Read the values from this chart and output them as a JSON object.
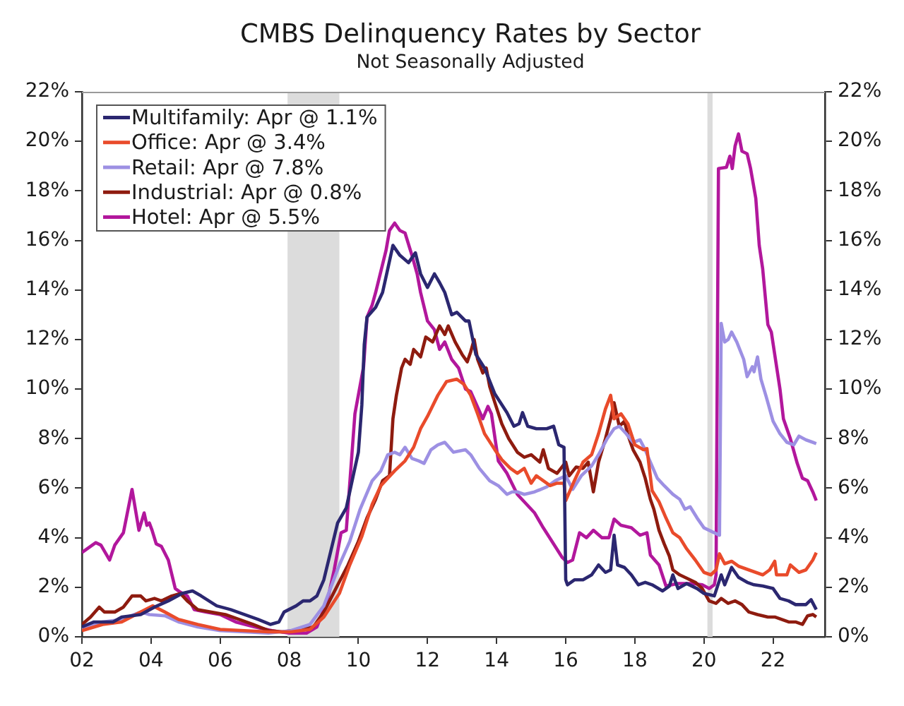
{
  "chart_data": {
    "type": "line",
    "title": "CMBS Delinquency Rates by Sector",
    "subtitle": "Not Seasonally Adjusted",
    "xlim": [
      2002,
      2023.5
    ],
    "xticks": [
      {
        "value": 2002,
        "label": "02"
      },
      {
        "value": 2004,
        "label": "04"
      },
      {
        "value": 2006,
        "label": "06"
      },
      {
        "value": 2008,
        "label": "08"
      },
      {
        "value": 2010,
        "label": "10"
      },
      {
        "value": 2012,
        "label": "12"
      },
      {
        "value": 2014,
        "label": "14"
      },
      {
        "value": 2016,
        "label": "16"
      },
      {
        "value": 2018,
        "label": "18"
      },
      {
        "value": 2020,
        "label": "20"
      },
      {
        "value": 2022,
        "label": "22"
      }
    ],
    "ylim": [
      0,
      22
    ],
    "yticks": [
      {
        "value": 0,
        "label": "0%"
      },
      {
        "value": 2,
        "label": "2%"
      },
      {
        "value": 4,
        "label": "4%"
      },
      {
        "value": 6,
        "label": "6%"
      },
      {
        "value": 8,
        "label": "8%"
      },
      {
        "value": 10,
        "label": "10%"
      },
      {
        "value": 12,
        "label": "12%"
      },
      {
        "value": 14,
        "label": "14%"
      },
      {
        "value": 16,
        "label": "16%"
      },
      {
        "value": 18,
        "label": "18%"
      },
      {
        "value": 20,
        "label": "20%"
      },
      {
        "value": 22,
        "label": "22%"
      }
    ],
    "y2lim": [
      0,
      22
    ],
    "y2ticks": [
      {
        "value": 0,
        "label": "0%"
      },
      {
        "value": 2,
        "label": "2%"
      },
      {
        "value": 4,
        "label": "4%"
      },
      {
        "value": 6,
        "label": "6%"
      },
      {
        "value": 8,
        "label": "8%"
      },
      {
        "value": 10,
        "label": "10%"
      },
      {
        "value": 12,
        "label": "12%"
      },
      {
        "value": 14,
        "label": "14%"
      },
      {
        "value": 16,
        "label": "16%"
      },
      {
        "value": 18,
        "label": "18%"
      },
      {
        "value": 20,
        "label": "20%"
      },
      {
        "value": 22,
        "label": "22%"
      }
    ],
    "legend": "top left",
    "bands": [
      {
        "axis": "x",
        "from": 2007.95,
        "to": 2009.45,
        "color": "#dcdcdc"
      },
      {
        "axis": "x",
        "from": 2020.1,
        "to": 2020.25,
        "color": "#dcdcdc"
      }
    ],
    "series": [
      {
        "name": "Multifamily: Apr @ 1.1%",
        "color": "#2b2770",
        "x": [
          2002.0,
          2002.35,
          2002.9,
          2003.15,
          2003.7,
          2004.1,
          2004.5,
          2004.9,
          2005.2,
          2005.45,
          2005.9,
          2006.3,
          2006.7,
          2007.1,
          2007.45,
          2007.7,
          2007.85,
          2008.2,
          2008.4,
          2008.6,
          2008.8,
          2009.0,
          2009.2,
          2009.4,
          2009.65,
          2009.85,
          2010.0,
          2010.1,
          2010.17,
          2010.25,
          2010.5,
          2010.7,
          2010.85,
          2011.0,
          2011.2,
          2011.45,
          2011.65,
          2011.8,
          2012.0,
          2012.2,
          2012.35,
          2012.5,
          2012.7,
          2012.85,
          2013.1,
          2013.2,
          2013.4,
          2013.65,
          2013.95,
          2014.3,
          2014.5,
          2014.65,
          2014.75,
          2014.9,
          2015.15,
          2015.45,
          2015.65,
          2015.8,
          2015.95,
          2016.0,
          2016.05,
          2016.25,
          2016.5,
          2016.75,
          2016.95,
          2017.15,
          2017.3,
          2017.4,
          2017.5,
          2017.7,
          2017.9,
          2018.1,
          2018.3,
          2018.5,
          2018.8,
          2019.0,
          2019.1,
          2019.25,
          2019.5,
          2019.8,
          2020.0,
          2020.3,
          2020.5,
          2020.6,
          2020.8,
          2021.0,
          2021.25,
          2021.45,
          2021.7,
          2022.0,
          2022.2,
          2022.45,
          2022.65,
          2022.95,
          2023.1,
          2023.25
        ],
        "values": [
          0.4,
          0.6,
          0.6,
          0.8,
          0.9,
          1.2,
          1.45,
          1.75,
          1.85,
          1.65,
          1.25,
          1.1,
          0.9,
          0.7,
          0.5,
          0.6,
          1.0,
          1.25,
          1.45,
          1.45,
          1.65,
          2.3,
          3.45,
          4.6,
          5.2,
          6.5,
          7.45,
          9.35,
          11.8,
          12.9,
          13.3,
          13.9,
          14.85,
          15.8,
          15.4,
          15.1,
          15.5,
          14.65,
          14.1,
          14.65,
          14.3,
          13.9,
          13.0,
          13.1,
          12.75,
          12.75,
          11.4,
          10.85,
          9.8,
          9.05,
          8.5,
          8.6,
          9.05,
          8.5,
          8.4,
          8.4,
          8.5,
          7.75,
          7.65,
          2.3,
          2.1,
          2.3,
          2.3,
          2.5,
          2.9,
          2.6,
          2.7,
          4.1,
          2.9,
          2.8,
          2.5,
          2.1,
          2.2,
          2.1,
          1.85,
          2.05,
          2.5,
          1.95,
          2.15,
          1.95,
          1.75,
          1.65,
          2.5,
          2.1,
          2.8,
          2.4,
          2.2,
          2.1,
          2.05,
          1.95,
          1.55,
          1.45,
          1.3,
          1.3,
          1.5,
          1.1
        ]
      },
      {
        "name": "Office: Apr @ 3.4%",
        "color": "#e94b2b",
        "x": [
          2002.0,
          2002.6,
          2003.15,
          2003.7,
          2004.05,
          2004.4,
          2004.8,
          2005.35,
          2006.0,
          2006.7,
          2007.4,
          2008.05,
          2008.6,
          2009.0,
          2009.45,
          2009.75,
          2010.1,
          2010.4,
          2010.65,
          2011.05,
          2011.35,
          2011.6,
          2011.8,
          2012.0,
          2012.3,
          2012.55,
          2012.85,
          2013.05,
          2013.25,
          2013.45,
          2013.65,
          2013.95,
          2014.15,
          2014.4,
          2014.6,
          2014.8,
          2015.0,
          2015.15,
          2015.35,
          2015.55,
          2015.75,
          2015.95,
          2016.0,
          2016.25,
          2016.5,
          2016.75,
          2016.95,
          2017.15,
          2017.3,
          2017.4,
          2017.6,
          2017.8,
          2018.0,
          2018.25,
          2018.35,
          2018.5,
          2018.7,
          2018.9,
          2019.1,
          2019.3,
          2019.5,
          2019.75,
          2020.0,
          2020.2,
          2020.35,
          2020.45,
          2020.6,
          2020.8,
          2021.0,
          2021.3,
          2021.5,
          2021.7,
          2021.9,
          2022.05,
          2022.1,
          2022.4,
          2022.5,
          2022.75,
          2022.95,
          2023.15,
          2023.25
        ],
        "values": [
          0.25,
          0.5,
          0.6,
          1.0,
          1.25,
          1.0,
          0.7,
          0.5,
          0.3,
          0.25,
          0.2,
          0.2,
          0.3,
          0.8,
          1.75,
          2.9,
          4.05,
          5.35,
          6.1,
          6.7,
          7.1,
          7.65,
          8.4,
          8.9,
          9.75,
          10.3,
          10.4,
          10.2,
          9.75,
          9.0,
          8.2,
          7.55,
          7.15,
          6.8,
          6.6,
          6.8,
          6.2,
          6.5,
          6.3,
          6.1,
          6.2,
          6.2,
          5.5,
          6.3,
          7.05,
          7.35,
          8.2,
          9.2,
          9.75,
          8.8,
          9.0,
          8.6,
          7.75,
          7.55,
          7.6,
          5.9,
          5.45,
          4.8,
          4.2,
          4.0,
          3.55,
          3.1,
          2.6,
          2.5,
          2.7,
          3.35,
          2.95,
          3.05,
          2.85,
          2.7,
          2.6,
          2.5,
          2.7,
          3.05,
          2.5,
          2.5,
          2.9,
          2.6,
          2.7,
          3.1,
          3.4
        ]
      },
      {
        "name": "Retail: Apr @ 7.8%",
        "color": "#9d90e3",
        "x": [
          2002.0,
          2002.6,
          2003.15,
          2003.7,
          2003.95,
          2004.4,
          2004.8,
          2005.35,
          2006.0,
          2006.7,
          2007.4,
          2008.05,
          2008.6,
          2009.0,
          2009.45,
          2009.75,
          2010.05,
          2010.4,
          2010.65,
          2010.85,
          2011.05,
          2011.2,
          2011.35,
          2011.55,
          2011.75,
          2011.9,
          2012.1,
          2012.3,
          2012.5,
          2012.75,
          2013.1,
          2013.25,
          2013.5,
          2013.8,
          2014.05,
          2014.3,
          2014.45,
          2014.6,
          2014.8,
          2015.1,
          2015.45,
          2015.7,
          2016.0,
          2016.2,
          2016.45,
          2016.75,
          2016.95,
          2017.2,
          2017.4,
          2017.55,
          2017.75,
          2017.95,
          2018.15,
          2018.3,
          2018.45,
          2018.65,
          2018.85,
          2019.1,
          2019.3,
          2019.45,
          2019.6,
          2019.8,
          2020.0,
          2020.15,
          2020.3,
          2020.45,
          2020.5,
          2020.6,
          2020.7,
          2020.8,
          2020.95,
          2021.15,
          2021.25,
          2021.4,
          2021.45,
          2021.55,
          2021.65,
          2021.8,
          2021.9,
          2022.0,
          2022.2,
          2022.4,
          2022.6,
          2022.75,
          2022.95,
          2023.15,
          2023.25
        ],
        "values": [
          0.3,
          0.6,
          0.7,
          1.0,
          0.9,
          0.85,
          0.6,
          0.4,
          0.25,
          0.2,
          0.15,
          0.25,
          0.5,
          1.25,
          2.9,
          3.85,
          5.15,
          6.3,
          6.7,
          7.35,
          7.45,
          7.35,
          7.65,
          7.2,
          7.1,
          7.0,
          7.55,
          7.75,
          7.85,
          7.45,
          7.55,
          7.35,
          6.8,
          6.3,
          6.1,
          5.75,
          5.85,
          5.85,
          5.75,
          5.85,
          6.05,
          6.3,
          6.5,
          5.95,
          6.5,
          6.9,
          7.35,
          8.0,
          8.4,
          8.5,
          8.2,
          7.85,
          7.95,
          7.55,
          7.05,
          6.4,
          6.1,
          5.75,
          5.55,
          5.15,
          5.25,
          4.8,
          4.4,
          4.3,
          4.2,
          4.1,
          12.65,
          11.9,
          12.0,
          12.3,
          11.9,
          11.2,
          10.5,
          10.9,
          10.7,
          11.3,
          10.4,
          9.7,
          9.2,
          8.7,
          8.2,
          7.85,
          7.75,
          8.1,
          7.95,
          7.85,
          7.8
        ]
      },
      {
        "name": "Industrial: Apr @ 0.8%",
        "color": "#8e1b0f",
        "x": [
          2002.0,
          2002.25,
          2002.5,
          2002.65,
          2002.95,
          2003.2,
          2003.45,
          2003.7,
          2003.85,
          2004.1,
          2004.3,
          2004.6,
          2004.85,
          2005.05,
          2005.35,
          2005.75,
          2006.15,
          2006.55,
          2006.95,
          2007.4,
          2007.8,
          2008.35,
          2008.7,
          2009.0,
          2009.35,
          2009.7,
          2010.0,
          2010.25,
          2010.5,
          2010.7,
          2010.9,
          2011.0,
          2011.1,
          2011.25,
          2011.35,
          2011.5,
          2011.6,
          2011.8,
          2011.95,
          2012.15,
          2012.35,
          2012.5,
          2012.6,
          2012.8,
          2013.0,
          2013.15,
          2013.25,
          2013.35,
          2013.45,
          2013.6,
          2013.7,
          2013.8,
          2013.95,
          2014.15,
          2014.35,
          2014.6,
          2014.8,
          2015.0,
          2015.25,
          2015.35,
          2015.5,
          2015.75,
          2016.0,
          2016.1,
          2016.3,
          2016.5,
          2016.65,
          2016.8,
          2016.95,
          2017.15,
          2017.3,
          2017.4,
          2017.55,
          2017.7,
          2017.8,
          2017.95,
          2018.15,
          2018.3,
          2018.45,
          2018.55,
          2018.7,
          2018.85,
          2019.0,
          2019.1,
          2019.3,
          2019.45,
          2019.75,
          2019.95,
          2020.15,
          2020.35,
          2020.5,
          2020.7,
          2020.9,
          2021.1,
          2021.3,
          2021.55,
          2021.85,
          2022.05,
          2022.25,
          2022.45,
          2022.65,
          2022.85,
          2023.0,
          2023.15,
          2023.25
        ],
        "values": [
          0.5,
          0.8,
          1.2,
          1.0,
          1.0,
          1.2,
          1.65,
          1.65,
          1.45,
          1.55,
          1.45,
          1.65,
          1.75,
          1.45,
          1.1,
          1.0,
          0.9,
          0.7,
          0.5,
          0.25,
          0.2,
          0.3,
          0.4,
          1.0,
          1.95,
          2.9,
          3.85,
          4.8,
          5.55,
          6.3,
          6.5,
          8.8,
          9.75,
          10.85,
          11.2,
          11.0,
          11.6,
          11.3,
          12.1,
          11.9,
          12.55,
          12.2,
          12.55,
          11.9,
          11.4,
          11.1,
          11.5,
          12.0,
          11.2,
          10.65,
          10.85,
          10.1,
          9.45,
          8.6,
          8.0,
          7.45,
          7.25,
          7.35,
          7.05,
          7.55,
          6.8,
          6.6,
          7.05,
          6.5,
          6.85,
          6.8,
          7.05,
          5.85,
          7.05,
          8.0,
          8.8,
          9.45,
          8.5,
          8.7,
          8.15,
          7.55,
          7.05,
          6.4,
          5.55,
          5.15,
          4.3,
          3.75,
          3.25,
          2.7,
          2.5,
          2.4,
          2.2,
          1.95,
          1.45,
          1.35,
          1.55,
          1.35,
          1.45,
          1.3,
          1.0,
          0.9,
          0.8,
          0.8,
          0.7,
          0.6,
          0.6,
          0.5,
          0.85,
          0.9,
          0.8
        ]
      },
      {
        "name": "Hotel: Apr @ 5.5%",
        "color": "#b2179c",
        "x": [
          2002.0,
          2002.4,
          2002.55,
          2002.8,
          2002.95,
          2003.2,
          2003.45,
          2003.65,
          2003.8,
          2003.88,
          2003.95,
          2004.03,
          2004.15,
          2004.3,
          2004.5,
          2004.7,
          2004.85,
          2005.05,
          2005.25,
          2005.6,
          2006.0,
          2006.45,
          2007.0,
          2007.5,
          2008.0,
          2008.5,
          2008.8,
          2009.0,
          2009.15,
          2009.3,
          2009.5,
          2009.65,
          2009.9,
          2010.15,
          2010.25,
          2010.4,
          2010.5,
          2010.8,
          2010.9,
          2011.05,
          2011.2,
          2011.35,
          2011.55,
          2011.7,
          2011.8,
          2012.0,
          2012.2,
          2012.35,
          2012.5,
          2012.7,
          2012.9,
          2013.1,
          2013.25,
          2013.6,
          2013.75,
          2013.85,
          2014.05,
          2014.3,
          2014.6,
          2014.8,
          2015.1,
          2015.35,
          2015.65,
          2015.9,
          2016.05,
          2016.2,
          2016.4,
          2016.6,
          2016.8,
          2017.05,
          2017.25,
          2017.4,
          2017.6,
          2017.9,
          2018.15,
          2018.35,
          2018.45,
          2018.7,
          2018.9,
          2019.25,
          2019.65,
          2019.95,
          2020.15,
          2020.3,
          2020.35,
          2020.42,
          2020.65,
          2020.75,
          2020.82,
          2020.9,
          2021.0,
          2021.1,
          2021.25,
          2021.35,
          2021.5,
          2021.6,
          2021.7,
          2021.85,
          2021.95,
          2022.2,
          2022.3,
          2022.5,
          2022.7,
          2022.85,
          2023.0,
          2023.15,
          2023.25
        ],
        "values": [
          3.4,
          3.8,
          3.7,
          3.1,
          3.7,
          4.2,
          5.95,
          4.3,
          5.0,
          4.5,
          4.6,
          4.3,
          3.75,
          3.65,
          3.1,
          1.95,
          1.8,
          1.65,
          1.1,
          1.0,
          0.9,
          0.6,
          0.4,
          0.25,
          0.15,
          0.15,
          0.4,
          1.1,
          1.75,
          2.7,
          4.2,
          4.3,
          9.0,
          10.9,
          12.9,
          13.4,
          13.9,
          15.6,
          16.4,
          16.7,
          16.4,
          16.3,
          15.4,
          14.65,
          13.9,
          12.75,
          12.4,
          11.6,
          11.9,
          11.2,
          10.85,
          10.0,
          9.9,
          8.8,
          9.3,
          9.0,
          7.1,
          6.6,
          5.75,
          5.45,
          5.0,
          4.4,
          3.75,
          3.2,
          3.0,
          3.1,
          4.2,
          4.0,
          4.3,
          4.0,
          4.0,
          4.75,
          4.5,
          4.4,
          4.1,
          4.2,
          3.3,
          2.9,
          2.05,
          2.15,
          2.15,
          2.1,
          1.95,
          2.1,
          2.5,
          18.9,
          18.95,
          19.4,
          18.9,
          19.8,
          20.3,
          19.6,
          19.5,
          18.9,
          17.7,
          15.8,
          14.85,
          12.6,
          12.3,
          10.0,
          8.8,
          8.0,
          7.0,
          6.4,
          6.3,
          5.85,
          5.5
        ]
      }
    ]
  }
}
